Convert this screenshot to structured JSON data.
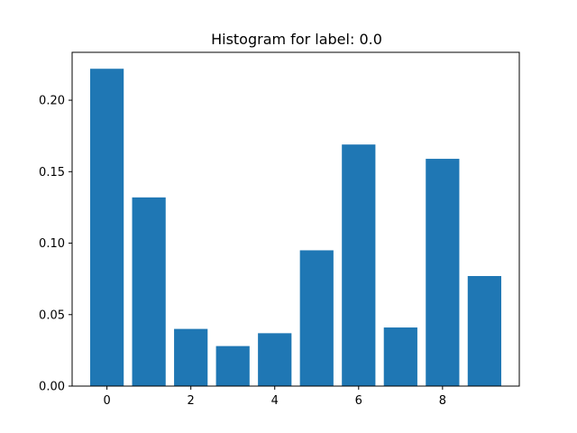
{
  "chart_data": {
    "type": "bar",
    "title": "Histogram for label: 0.0",
    "xlabel": "",
    "ylabel": "",
    "categories": [
      0,
      1,
      2,
      3,
      4,
      5,
      6,
      7,
      8,
      9
    ],
    "values": [
      0.222,
      0.132,
      0.04,
      0.028,
      0.037,
      0.095,
      0.169,
      0.041,
      0.159,
      0.077
    ],
    "xlim": [
      -0.83,
      9.83
    ],
    "ylim": [
      0,
      0.2335
    ],
    "x_ticks": [
      0,
      2,
      4,
      6,
      8
    ],
    "x_tick_labels": [
      "0",
      "2",
      "4",
      "6",
      "8"
    ],
    "y_ticks": [
      0,
      0.05,
      0.1,
      0.15,
      0.2
    ],
    "y_tick_labels": [
      "0.00",
      "0.05",
      "0.10",
      "0.15",
      "0.20"
    ],
    "bar_color": "#1f77b4",
    "grid": false,
    "legend": "none"
  }
}
